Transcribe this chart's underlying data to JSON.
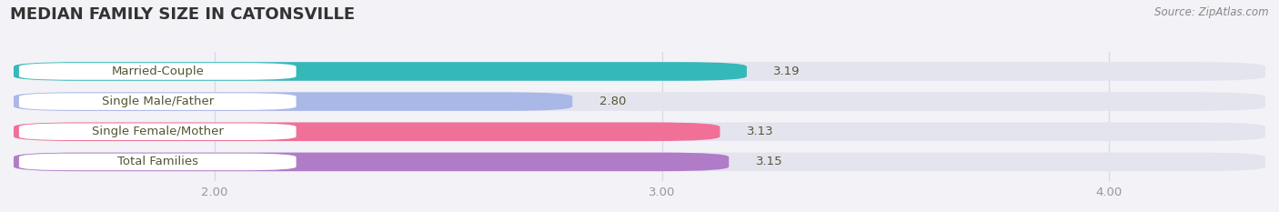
{
  "title": "MEDIAN FAMILY SIZE IN CATONSVILLE",
  "source": "Source: ZipAtlas.com",
  "categories": [
    "Married-Couple",
    "Single Male/Father",
    "Single Female/Mother",
    "Total Families"
  ],
  "values": [
    3.19,
    2.8,
    3.13,
    3.15
  ],
  "bar_colors": [
    "#35b8b8",
    "#aab8e8",
    "#f07098",
    "#b07cc8"
  ],
  "xlim_min": 1.55,
  "xlim_max": 4.35,
  "xstart": 0.0,
  "xticks": [
    2.0,
    3.0,
    4.0
  ],
  "xtick_labels": [
    "2.00",
    "3.00",
    "4.00"
  ],
  "bar_height": 0.62,
  "background_color": "#f2f2f7",
  "bar_background_color": "#e4e4ee",
  "title_fontsize": 13,
  "source_fontsize": 8.5,
  "label_fontsize": 9.5,
  "value_fontsize": 9.5,
  "label_box_color": "white",
  "label_text_color": "#555533",
  "value_text_color": "#555533",
  "grid_color": "#d8d8e8"
}
